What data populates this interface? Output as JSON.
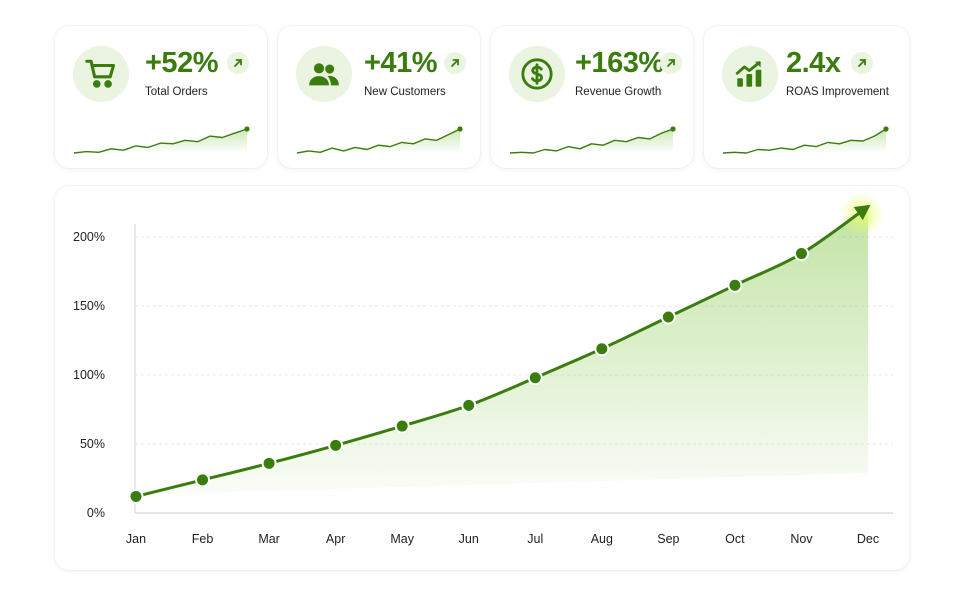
{
  "kpis": [
    {
      "value": "+52%",
      "label": "Total Orders",
      "icon": "cart-icon",
      "trend": [
        2,
        4,
        3,
        8,
        6,
        12,
        10,
        16,
        15,
        20,
        18,
        26,
        24,
        30,
        36
      ]
    },
    {
      "value": "+41%",
      "label": "New Customers",
      "icon": "users-icon",
      "trend": [
        2,
        5,
        3,
        9,
        5,
        10,
        7,
        13,
        11,
        17,
        15,
        22,
        20,
        28,
        36
      ]
    },
    {
      "value": "+163%",
      "label": "Revenue Growth",
      "icon": "dollar-icon",
      "trend": [
        2,
        3,
        2,
        7,
        5,
        11,
        8,
        15,
        13,
        20,
        18,
        24,
        22,
        30,
        36
      ]
    },
    {
      "value": "2.4x",
      "label": "ROAS Improvement",
      "icon": "bar-growth-icon",
      "trend": [
        2,
        3,
        2,
        7,
        6,
        9,
        7,
        13,
        11,
        17,
        15,
        20,
        19,
        26,
        36
      ]
    }
  ],
  "colors": {
    "accent": "#3a7d0e",
    "accent_light": "#eaf4e0",
    "fill": "#8fcc5a"
  },
  "chart_data": {
    "type": "area",
    "categories": [
      "Jan",
      "Feb",
      "Mar",
      "Apr",
      "May",
      "Jun",
      "Jul",
      "Aug",
      "Sep",
      "Oct",
      "Nov",
      "Dec"
    ],
    "values": [
      12,
      24,
      36,
      49,
      63,
      78,
      98,
      119,
      142,
      165,
      188,
      222
    ],
    "ytick_labels": [
      "0%",
      "50%",
      "100%",
      "150%",
      "200%"
    ],
    "ytick_values": [
      0,
      50,
      100,
      150,
      200
    ],
    "ylim": [
      0,
      200
    ],
    "title": "",
    "xlabel": "",
    "ylabel": "",
    "grid": "horizontal-dashed",
    "legend": "none",
    "last_point_marker": "arrow"
  }
}
